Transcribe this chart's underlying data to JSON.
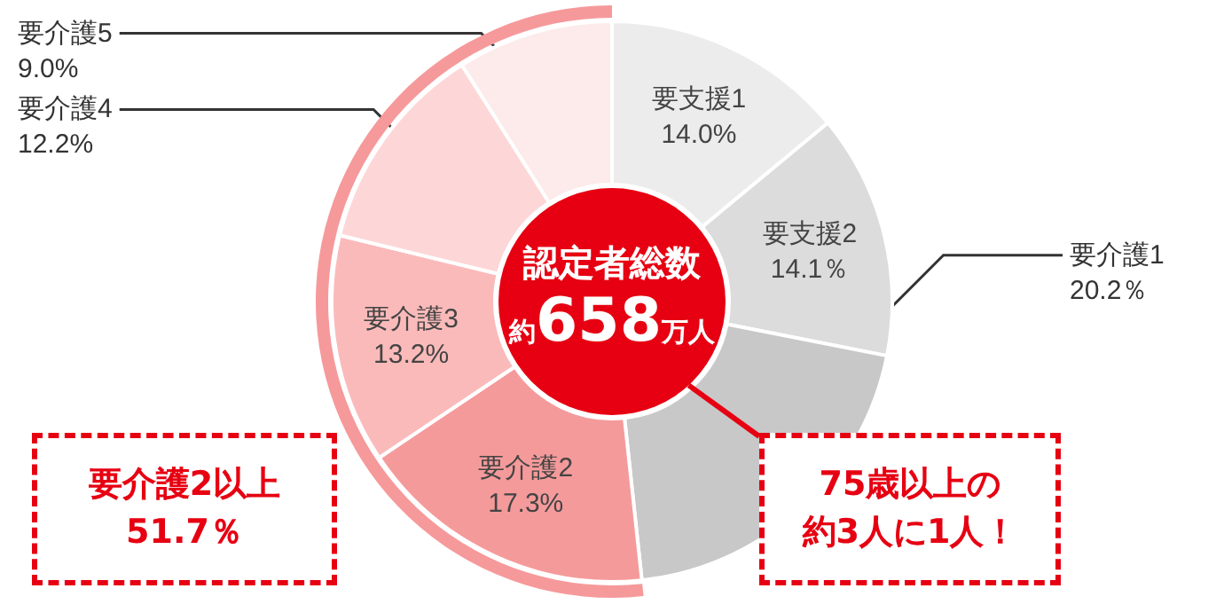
{
  "chart_data": {
    "type": "donut",
    "categories": [
      "要支援1",
      "要支援2",
      "要介護1",
      "要介護2",
      "要介護3",
      "要介護4",
      "要介護5"
    ],
    "values": [
      14.0,
      14.1,
      20.2,
      17.3,
      13.2,
      12.2,
      9.0
    ],
    "value_labels": [
      "14.0%",
      "14.1％",
      "20.2％",
      "17.3%",
      "13.2%",
      "12.2%",
      "9.0%"
    ],
    "colors": [
      "#ececec",
      "#dcdcdc",
      "#c8c8c8",
      "#f59a9b",
      "#fbbaba",
      "#fdd7d7",
      "#fdeaea"
    ],
    "title": "認定者総数",
    "subtitle": "約658万人",
    "annotations": [
      {
        "text": "要介護2以上51.7％",
        "x": "要介護2"
      },
      "75歳以上の",
      "約3人に1人！"
    ],
    "legend": false
  }
}
